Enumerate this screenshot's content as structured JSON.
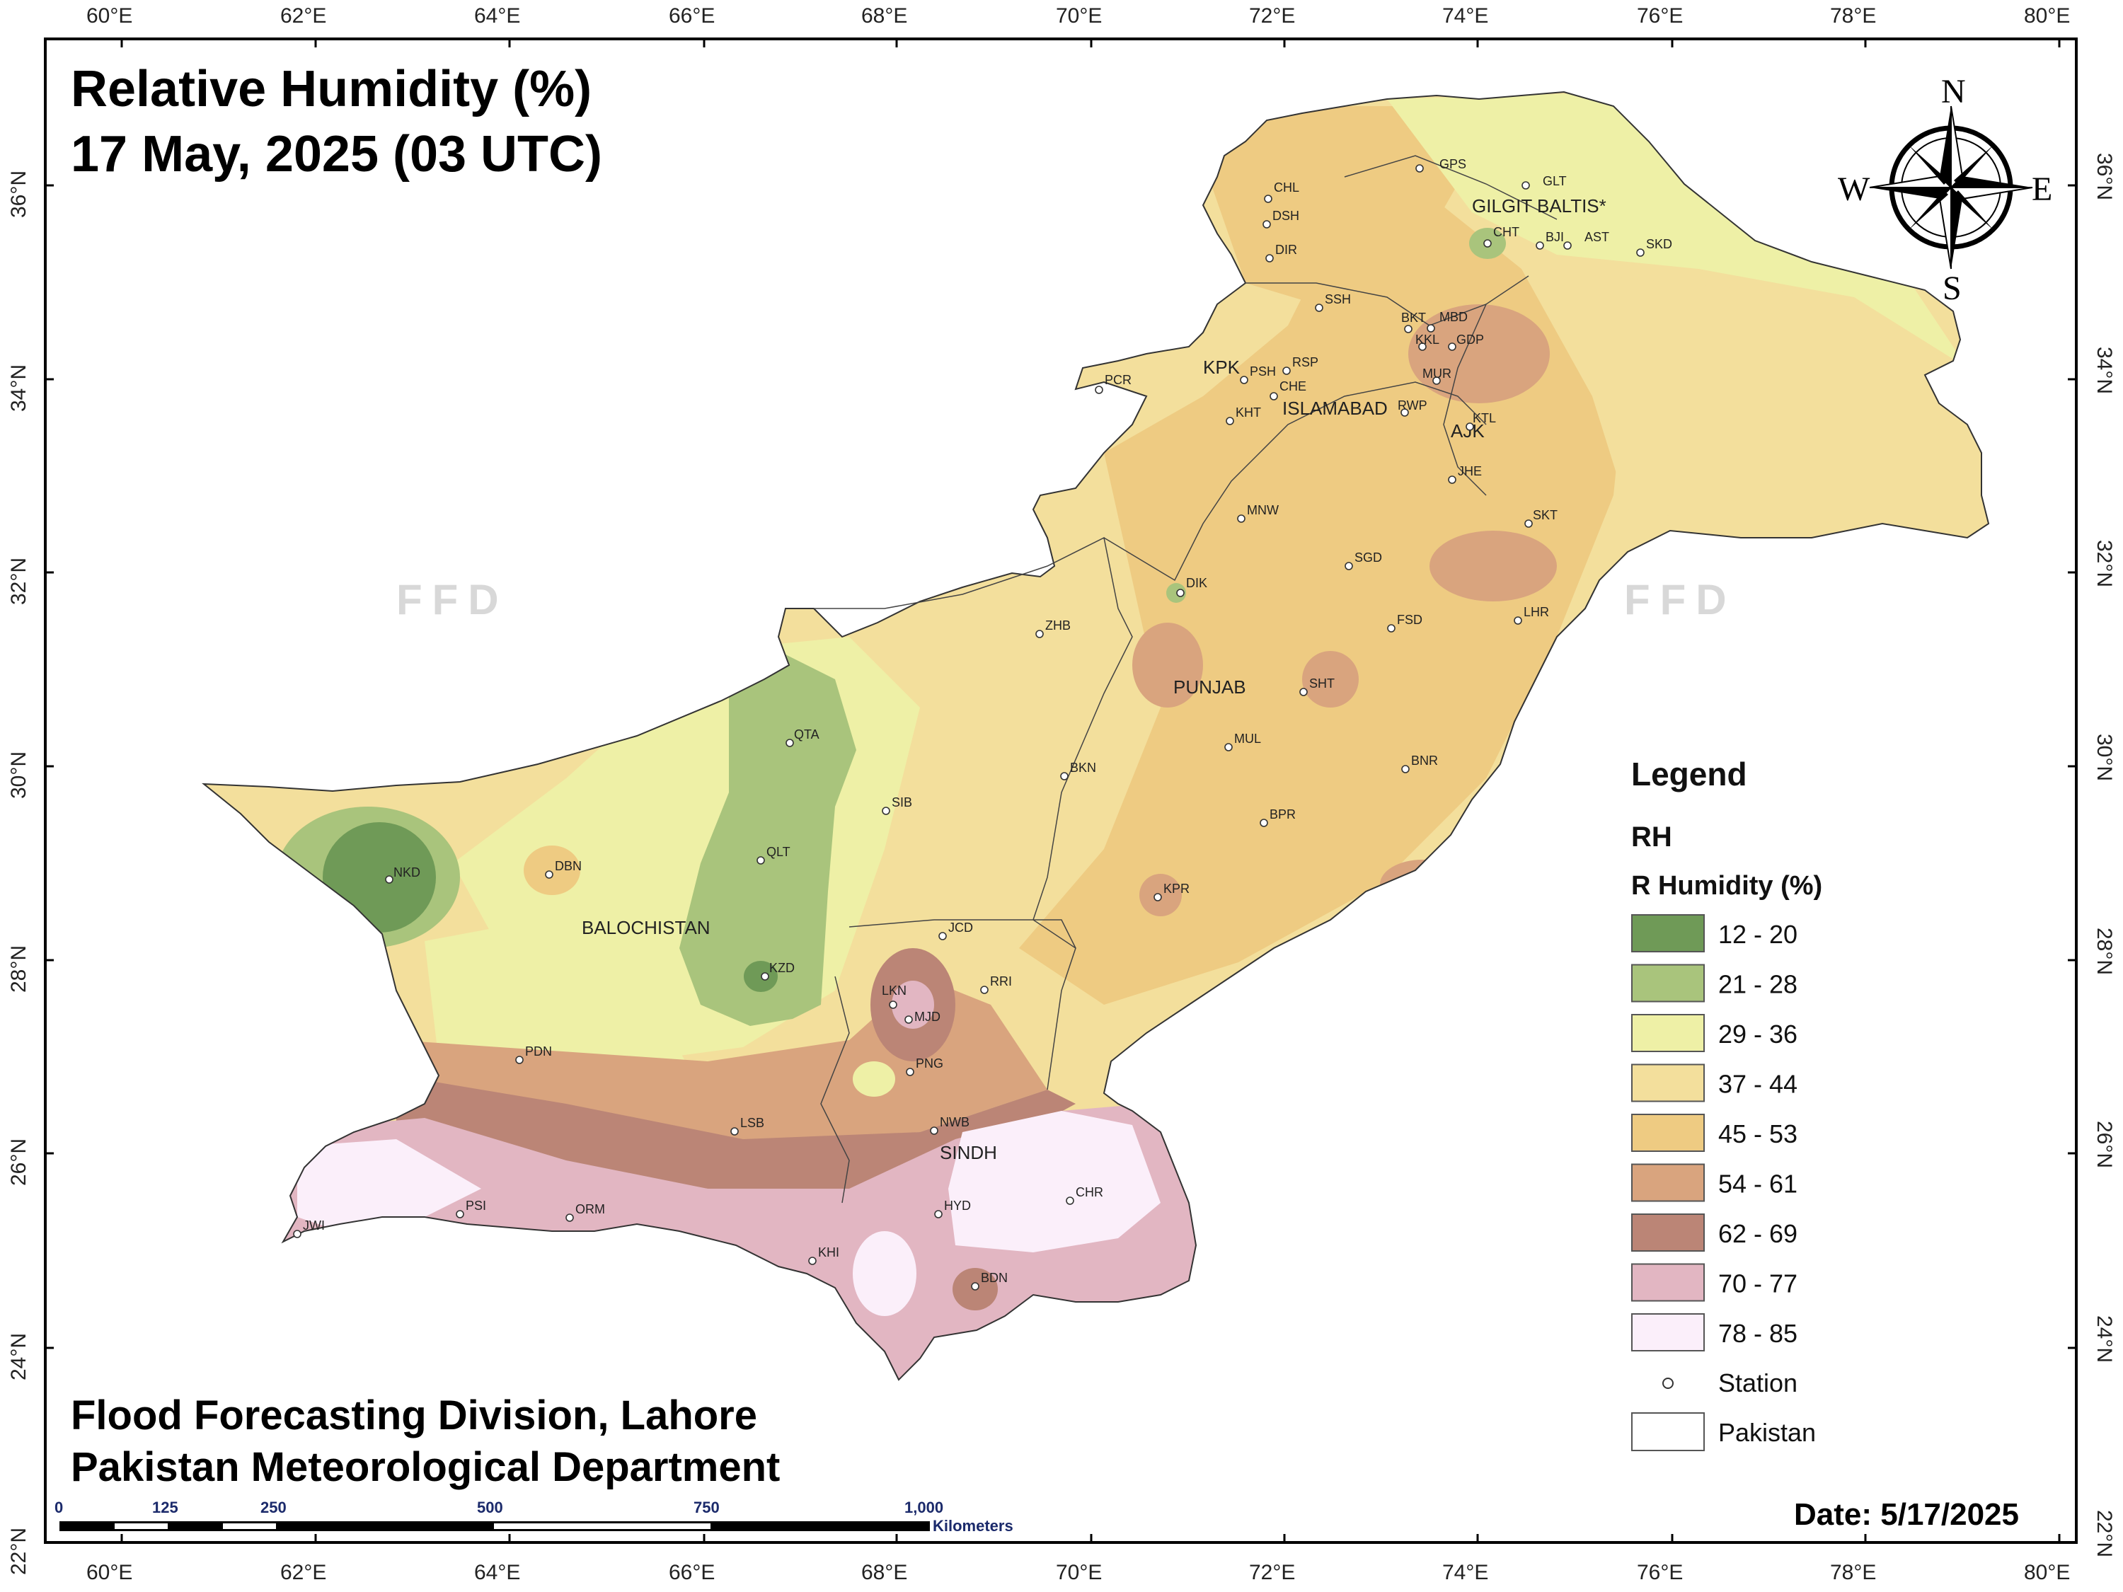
{
  "map": {
    "title_line1": "Relative Humidity (%)",
    "title_line2": "17 May, 2025 (03 UTC)",
    "footer_line1": "Flood Forecasting Division, Lahore",
    "footer_line2": "Pakistan Meteorological Department",
    "date_label": "Date: 5/17/2025",
    "watermark": "FFD"
  },
  "axes": {
    "lon_ticks": [
      "60°E",
      "62°E",
      "64°E",
      "66°E",
      "68°E",
      "70°E",
      "72°E",
      "74°E",
      "76°E",
      "78°E",
      "80°E"
    ],
    "lat_ticks": [
      "36°N",
      "34°N",
      "32°N",
      "30°N",
      "28°N",
      "26°N",
      "24°N",
      "22°N"
    ]
  },
  "compass": {
    "n": "N",
    "s": "S",
    "e": "E",
    "w": "W"
  },
  "legend": {
    "title": "Legend",
    "layer": "RH",
    "field": "R Humidity (%)",
    "classes": [
      {
        "label": "12 - 20",
        "color": "#6f9a57"
      },
      {
        "label": "21 - 28",
        "color": "#a9c47c"
      },
      {
        "label": "29 - 36",
        "color": "#eef0a6"
      },
      {
        "label": "37 - 44",
        "color": "#f3df9c"
      },
      {
        "label": "45 - 53",
        "color": "#eecb82"
      },
      {
        "label": "54 - 61",
        "color": "#d9a47e"
      },
      {
        "label": "62 - 69",
        "color": "#bb8576"
      },
      {
        "label": "70 - 77",
        "color": "#e2b6c2"
      },
      {
        "label": "78 - 85",
        "color": "#fbeffa"
      }
    ],
    "station_label": "Station",
    "pakistan_label": "Pakistan"
  },
  "scale_bar": {
    "labels": [
      "0",
      "125",
      "250",
      "500",
      "750",
      "1,000"
    ],
    "unit": "Kilometers"
  },
  "regions": [
    "GILGIT BALTIS*",
    "KPK",
    "ISLAMABAD",
    "AJK",
    "PUNJAB",
    "BALOCHISTAN",
    "SINDH"
  ],
  "stations": [
    "GPS",
    "GLT",
    "CHL",
    "DSH",
    "CHT",
    "BJI",
    "AST",
    "SKD",
    "DIR",
    "SSH",
    "BKT",
    "MBD",
    "KKL",
    "GDP",
    "PCR",
    "PSH",
    "RSP",
    "MUR",
    "CHE",
    "RWP",
    "KHT",
    "KTL",
    "JHE",
    "MNW",
    "SKT",
    "SGD",
    "DIK",
    "LHR",
    "ZHB",
    "FSD",
    "SHT",
    "QTA",
    "MUL",
    "BNR",
    "BKN",
    "SIB",
    "BPR",
    "NKD",
    "DBN",
    "QLT",
    "KPR",
    "JCD",
    "KZD",
    "RRI",
    "LKN",
    "MJD",
    "PNG",
    "PDN",
    "LSB",
    "NWB",
    "CHR",
    "PSI",
    "HYD",
    "JWI",
    "ORM",
    "KHI",
    "BDN"
  ]
}
